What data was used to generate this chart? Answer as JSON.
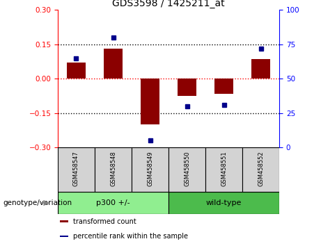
{
  "title": "GDS3598 / 1425211_at",
  "samples": [
    "GSM458547",
    "GSM458548",
    "GSM458549",
    "GSM458550",
    "GSM458551",
    "GSM458552"
  ],
  "bar_values": [
    0.07,
    0.13,
    -0.2,
    -0.075,
    -0.065,
    0.085
  ],
  "scatter_values": [
    65,
    80,
    5,
    30,
    31,
    72
  ],
  "groups": [
    {
      "label": "p300 +/-",
      "indices": [
        0,
        1,
        2
      ],
      "color": "#90EE90"
    },
    {
      "label": "wild-type",
      "indices": [
        3,
        4,
        5
      ],
      "color": "#4CBB4C"
    }
  ],
  "bar_color": "#8B0000",
  "scatter_color": "#00008B",
  "ylim_left": [
    -0.3,
    0.3
  ],
  "ylim_right": [
    0,
    100
  ],
  "yticks_left": [
    -0.3,
    -0.15,
    0,
    0.15,
    0.3
  ],
  "yticks_right": [
    0,
    25,
    50,
    75,
    100
  ],
  "hlines": [
    0.15,
    0.0,
    -0.15
  ],
  "hline_styles": [
    "dotted",
    "dashed_red",
    "dotted"
  ],
  "group_label": "genotype/variation",
  "legend_items": [
    {
      "label": "transformed count",
      "color": "#8B0000"
    },
    {
      "label": "percentile rank within the sample",
      "color": "#00008B"
    }
  ],
  "background_color": "#ffffff",
  "label_area_bg": "#d3d3d3",
  "bar_width": 0.5
}
